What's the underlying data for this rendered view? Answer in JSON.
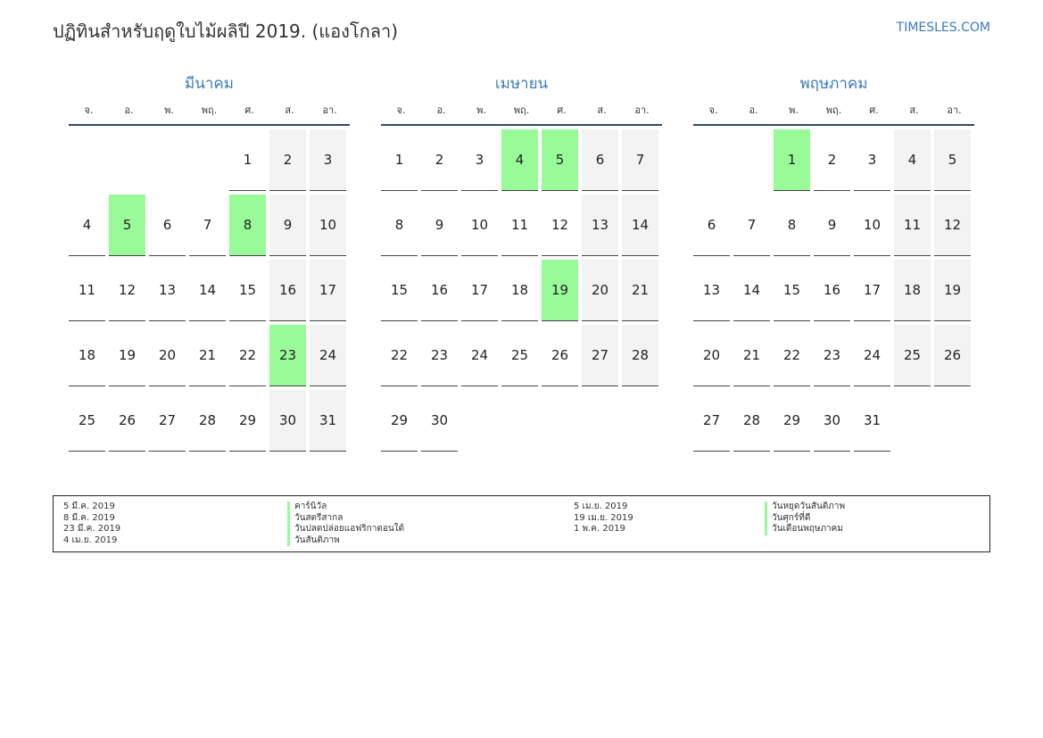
{
  "title": "ปฏิทินสำหรับฤดูใบไม้ผลิปี 2019. (แองโกลา)",
  "brand": "TIMESLES.COM",
  "weekdays": [
    "จ.",
    "อ.",
    "พ.",
    "พฤ.",
    "ศ.",
    "ส.",
    "อา."
  ],
  "colors": {
    "accent": "#3a7bbf",
    "holiday": "#98fb98",
    "weekend": "#f3f3f3"
  },
  "months": [
    {
      "name": "มีนาคม",
      "offset": 4,
      "days": 31,
      "holidays": [
        5,
        8,
        23
      ]
    },
    {
      "name": "เมษายน",
      "offset": 0,
      "days": 30,
      "holidays": [
        4,
        5,
        19
      ]
    },
    {
      "name": "พฤษภาคม",
      "offset": 2,
      "days": 31,
      "holidays": [
        1
      ]
    }
  ],
  "legend": {
    "left": [
      {
        "date": "5 มี.ค. 2019",
        "name": "คาร์นิวัล"
      },
      {
        "date": "8 มี.ค. 2019",
        "name": "วันสตรีสากล"
      },
      {
        "date": "23 มี.ค. 2019",
        "name": "วันปลดปล่อยแอฟริกาตอนใต้"
      },
      {
        "date": "4 เม.ย. 2019",
        "name": "วันสันติภาพ"
      }
    ],
    "right": [
      {
        "date": "5 เม.ย. 2019",
        "name": "วันหยุดวันสันติภาพ"
      },
      {
        "date": "19 เม.ย. 2019",
        "name": "วันศุกร์ที่ดี"
      },
      {
        "date": "1 พ.ค. 2019",
        "name": "วันเดือนพฤษภาคม"
      }
    ]
  }
}
